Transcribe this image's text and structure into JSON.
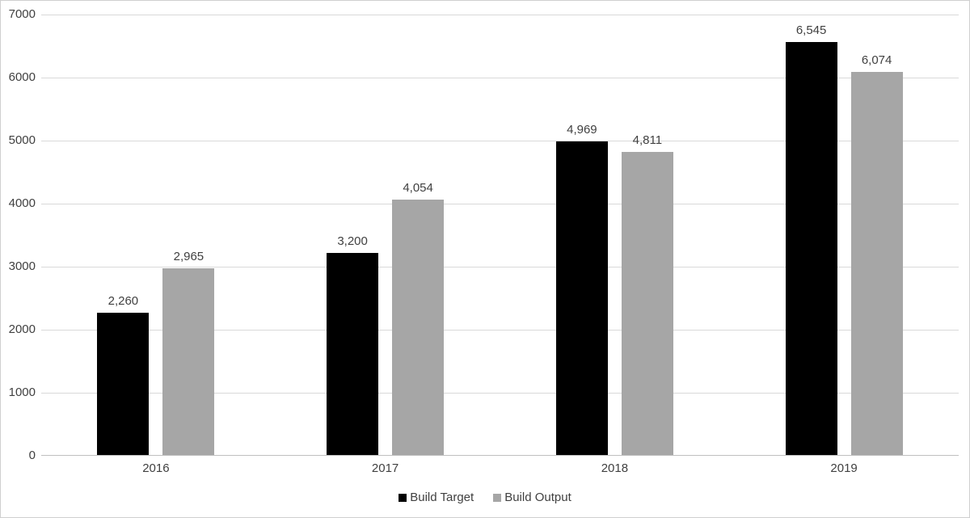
{
  "chart_data": {
    "type": "bar",
    "categories": [
      "2016",
      "2017",
      "2018",
      "2019"
    ],
    "series": [
      {
        "name": "Build Target",
        "color": "#000000",
        "values": [
          2260,
          3200,
          4969,
          6545
        ]
      },
      {
        "name": "Build Output",
        "color": "#a6a6a6",
        "values": [
          2965,
          4054,
          4811,
          6074
        ]
      }
    ],
    "ylim": [
      0,
      7000
    ],
    "ytick_interval": 1000,
    "yticks": [
      "0",
      "1000",
      "2000",
      "3000",
      "4000",
      "5000",
      "6000",
      "7000"
    ],
    "grid": true,
    "data_labels": true,
    "legend_position": "bottom",
    "colors": {
      "gridline": "#d9d9d9",
      "axis_line": "#bfbfbf",
      "tick_text": "#404040",
      "chart_border": "#cfcfcf",
      "background": "#ffffff"
    }
  }
}
